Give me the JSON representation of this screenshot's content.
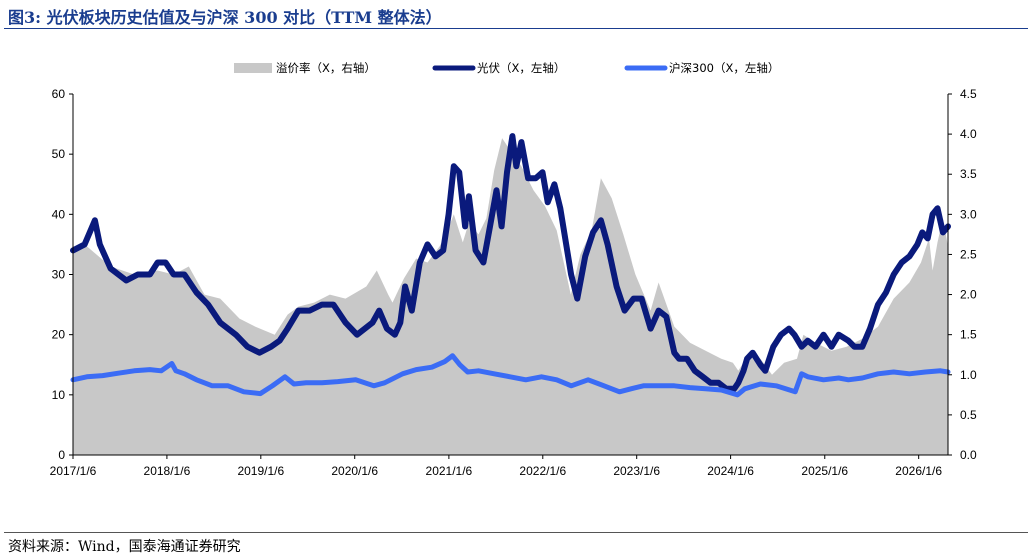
{
  "header": {
    "title": "图3:  光伏板块历史估值及与沪深 300 对比（TTM  整体法）"
  },
  "footer": {
    "source": "资料来源：Wind，国泰海通证券研究"
  },
  "chart_data": {
    "type": "line",
    "x_axis": {
      "start": "2017/1/6",
      "end": "2026/4/30",
      "ticks": [
        "2017/1/6",
        "2018/1/6",
        "2019/1/6",
        "2020/1/6",
        "2021/1/6",
        "2022/1/6",
        "2023/1/6",
        "2024/1/6",
        "2025/1/6",
        "2026/1/6"
      ]
    },
    "y_left": {
      "min": 0,
      "max": 60,
      "ticks": [
        "0",
        "10",
        "20",
        "30",
        "40",
        "50",
        "60"
      ]
    },
    "y_right": {
      "min": 0,
      "max": 4.5,
      "ticks": [
        "0.0",
        "0.5",
        "1.0",
        "1.5",
        "2.0",
        "2.5",
        "3.0",
        "3.5",
        "4.0",
        "4.5"
      ]
    },
    "legend_position": "top",
    "grid": false,
    "series": [
      {
        "name": "溢价率（X，右轴）",
        "kind": "area",
        "axis": "right",
        "color": "#c8c8c8",
        "x": [
          "2017/1/6",
          "2017/3/1",
          "2017/6/1",
          "2017/9/1",
          "2017/12/1",
          "2018/2/1",
          "2018/4/1",
          "2018/6/1",
          "2018/8/1",
          "2018/10/15",
          "2018/12/15",
          "2019/3/1",
          "2019/4/20",
          "2019/6/1",
          "2019/8/1",
          "2019/10/1",
          "2019/12/1",
          "2020/2/20",
          "2020/4/1",
          "2020/5/15",
          "2020/6/1",
          "2020/7/15",
          "2020/9/1",
          "2020/10/15",
          "2020/12/1",
          "2021/1/1",
          "2021/1/25",
          "2021/3/1",
          "2021/3/25",
          "2021/5/1",
          "2021/6/1",
          "2021/7/1",
          "2021/8/1",
          "2021/9/1",
          "2021/10/15",
          "2021/12/1",
          "2022/1/15",
          "2022/3/1",
          "2022/4/25",
          "2022/6/1",
          "2022/7/15",
          "2022/8/20",
          "2022/10/1",
          "2022/11/15",
          "2023/1/1",
          "2023/3/1",
          "2023/4/1",
          "2023/6/1",
          "2023/8/1",
          "2023/10/1",
          "2023/12/1",
          "2024/1/15",
          "2024/2/5",
          "2024/3/15",
          "2024/5/1",
          "2024/6/15",
          "2024/8/1",
          "2024/9/20",
          "2024/10/15",
          "2024/12/1",
          "2025/2/1",
          "2025/4/1",
          "2025/6/1",
          "2025/8/1",
          "2025/10/1",
          "2025/12/1",
          "2026/1/15",
          "2026/2/15",
          "2026/3/1",
          "2026/3/20",
          "2026/4/10",
          "2026/4/30"
        ],
        "values": [
          2.55,
          2.6,
          2.35,
          2.25,
          2.3,
          2.25,
          2.35,
          2.0,
          1.95,
          1.7,
          1.6,
          1.5,
          1.75,
          1.85,
          1.9,
          2.0,
          1.95,
          2.1,
          2.3,
          2.0,
          1.9,
          2.2,
          2.45,
          2.4,
          2.6,
          2.8,
          3.0,
          2.65,
          2.9,
          2.75,
          2.95,
          3.55,
          3.95,
          3.8,
          3.6,
          3.3,
          3.1,
          2.8,
          2.0,
          2.5,
          2.8,
          3.45,
          3.2,
          2.75,
          2.25,
          1.8,
          2.15,
          1.6,
          1.4,
          1.3,
          1.2,
          1.15,
          1.05,
          1.25,
          1.2,
          1.0,
          1.15,
          1.2,
          1.5,
          1.4,
          1.3,
          1.35,
          1.45,
          1.6,
          1.95,
          2.15,
          2.4,
          2.7,
          2.3,
          2.65,
          2.95,
          2.6
        ]
      },
      {
        "name": "光伏（X，左轴）",
        "kind": "line",
        "axis": "left",
        "color": "#0a1a7c",
        "x": [
          "2017/1/6",
          "2017/2/20",
          "2017/4/1",
          "2017/4/20",
          "2017/6/1",
          "2017/8/1",
          "2017/9/15",
          "2017/11/1",
          "2017/12/1",
          "2018/1/1",
          "2018/2/1",
          "2018/3/15",
          "2018/5/1",
          "2018/6/15",
          "2018/8/1",
          "2018/10/1",
          "2018/11/15",
          "2019/1/1",
          "2019/2/15",
          "2019/3/20",
          "2019/4/20",
          "2019/6/1",
          "2019/7/15",
          "2019/9/1",
          "2019/10/15",
          "2019/12/1",
          "2020/1/15",
          "2020/3/15",
          "2020/4/10",
          "2020/5/10",
          "2020/6/10",
          "2020/7/1",
          "2020/7/20",
          "2020/8/15",
          "2020/9/15",
          "2020/10/15",
          "2020/11/15",
          "2020/12/15",
          "2021/1/5",
          "2021/1/25",
          "2021/2/15",
          "2021/3/10",
          "2021/3/25",
          "2021/4/20",
          "2021/5/20",
          "2021/6/15",
          "2021/7/10",
          "2021/7/30",
          "2021/8/20",
          "2021/9/10",
          "2021/9/25",
          "2021/10/15",
          "2021/11/10",
          "2021/12/10",
          "2022/1/5",
          "2022/1/25",
          "2022/2/20",
          "2022/3/15",
          "2022/4/26",
          "2022/5/20",
          "2022/6/20",
          "2022/7/20",
          "2022/8/20",
          "2022/9/15",
          "2022/10/20",
          "2022/11/20",
          "2022/12/25",
          "2023/1/25",
          "2023/3/1",
          "2023/4/1",
          "2023/5/1",
          "2023/6/1",
          "2023/6/20",
          "2023/7/20",
          "2023/8/20",
          "2023/9/20",
          "2023/10/20",
          "2023/11/20",
          "2023/12/20",
          "2024/1/20",
          "2024/2/5",
          "2024/2/25",
          "2024/3/10",
          "2024/4/1",
          "2024/5/1",
          "2024/5/20",
          "2024/6/20",
          "2024/7/20",
          "2024/8/20",
          "2024/9/10",
          "2024/10/8",
          "2024/11/1",
          "2024/12/1",
          "2025/1/1",
          "2025/2/1",
          "2025/3/1",
          "2025/4/8",
          "2025/5/1",
          "2025/6/1",
          "2025/7/1",
          "2025/8/1",
          "2025/9/1",
          "2025/10/1",
          "2025/11/1",
          "2025/12/1",
          "2026/1/1",
          "2026/1/20",
          "2026/2/10",
          "2026/3/1",
          "2026/3/20",
          "2026/4/10",
          "2026/4/30"
        ],
        "values": [
          34,
          35,
          39,
          35,
          31,
          29,
          30,
          30,
          32,
          32,
          30,
          30,
          27,
          25,
          22,
          20,
          18,
          17,
          18,
          19,
          21,
          24,
          24,
          25,
          25,
          22,
          20,
          22,
          24,
          21,
          20,
          22,
          28,
          24,
          32,
          35,
          33,
          34,
          40,
          48,
          47,
          38,
          43,
          34,
          32,
          38,
          44,
          38,
          47,
          53,
          48,
          52,
          46,
          46,
          47,
          42,
          45,
          41,
          30,
          26,
          33,
          37,
          39,
          35,
          28,
          24,
          26,
          26,
          21,
          24,
          23,
          17,
          16,
          16,
          14,
          13,
          12,
          12,
          11,
          11,
          12,
          14,
          16,
          17,
          15,
          14,
          18,
          20,
          21,
          20,
          18,
          19,
          18,
          20,
          18,
          20,
          19,
          18,
          18,
          21,
          25,
          27,
          30,
          32,
          33,
          35,
          37,
          36,
          40,
          41,
          37,
          38
        ]
      },
      {
        "name": "沪深300（X，左轴）",
        "kind": "line",
        "axis": "left",
        "color": "#3b6cf5",
        "x": [
          "2017/1/6",
          "2017/3/1",
          "2017/5/1",
          "2017/7/1",
          "2017/9/1",
          "2017/11/1",
          "2017/12/15",
          "2018/1/25",
          "2018/2/10",
          "2018/3/15",
          "2018/5/1",
          "2018/7/1",
          "2018/9/1",
          "2018/11/1",
          "2019/1/4",
          "2019/2/20",
          "2019/4/10",
          "2019/5/15",
          "2019/7/1",
          "2019/9/1",
          "2019/11/1",
          "2020/1/10",
          "2020/3/20",
          "2020/5/1",
          "2020/7/10",
          "2020/9/1",
          "2020/11/1",
          "2020/12/20",
          "2021/1/20",
          "2021/2/18",
          "2021/3/20",
          "2021/5/1",
          "2021/7/1",
          "2021/9/1",
          "2021/11/1",
          "2022/1/1",
          "2022/3/1",
          "2022/4/27",
          "2022/7/1",
          "2022/9/1",
          "2022/10/31",
          "2022/12/15",
          "2023/2/1",
          "2023/4/1",
          "2023/6/1",
          "2023/8/1",
          "2023/10/1",
          "2023/12/1",
          "2024/2/2",
          "2024/3/1",
          "2024/5/1",
          "2024/7/1",
          "2024/9/13",
          "2024/10/8",
          "2024/11/1",
          "2025/1/1",
          "2025/3/1",
          "2025/4/8",
          "2025/6/1",
          "2025/8/1",
          "2025/10/1",
          "2025/12/1",
          "2026/2/1",
          "2026/4/1",
          "2026/4/30"
        ],
        "values": [
          12.5,
          13,
          13.2,
          13.6,
          14,
          14.2,
          14,
          15.2,
          14,
          13.5,
          12.5,
          11.5,
          11.5,
          10.5,
          10.2,
          11.5,
          13,
          11.8,
          12,
          12,
          12.2,
          12.5,
          11.5,
          12,
          13.5,
          14.2,
          14.6,
          15.5,
          16.5,
          15,
          13.8,
          14,
          13.5,
          13,
          12.5,
          13,
          12.5,
          11.5,
          12.5,
          11.5,
          10.5,
          11,
          11.5,
          11.5,
          11.5,
          11.2,
          11,
          10.8,
          10,
          11,
          11.8,
          11.5,
          10.5,
          13.5,
          13,
          12.5,
          12.8,
          12.5,
          12.8,
          13.5,
          13.8,
          13.5,
          13.8,
          14,
          13.8
        ]
      }
    ]
  }
}
